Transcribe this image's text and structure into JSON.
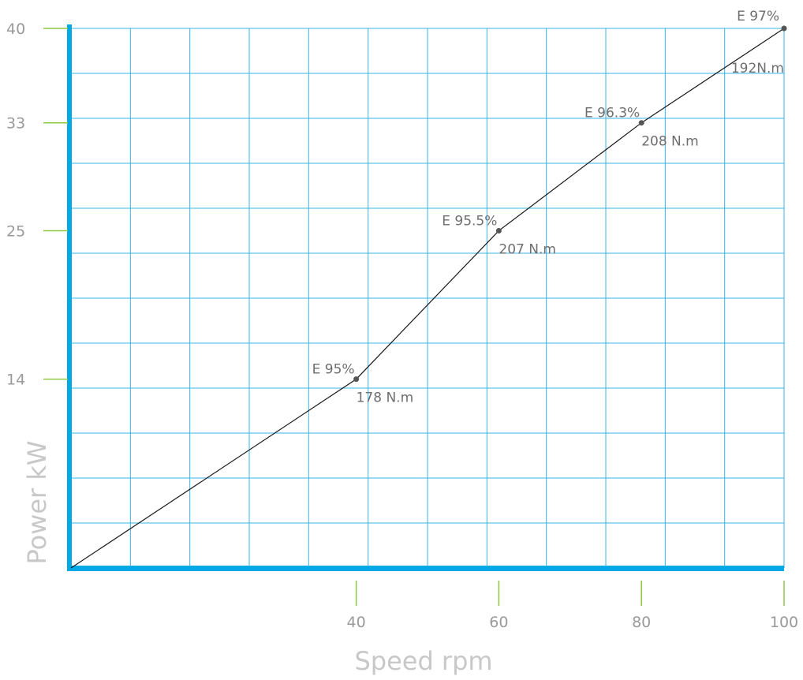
{
  "chart_data": {
    "type": "line",
    "xlabel": "Speed rpm",
    "ylabel": "Power kW",
    "xlim": [
      0,
      100
    ],
    "ylim": [
      0,
      40
    ],
    "x_ticks": [
      40,
      60,
      80,
      100
    ],
    "y_ticks": [
      14,
      25,
      33,
      40
    ],
    "grid": true,
    "series": [
      {
        "points": [
          {
            "x": 0,
            "y": 0
          },
          {
            "x": 40,
            "y": 14,
            "efficiency": "E 95%",
            "torque": "178 N.m"
          },
          {
            "x": 60,
            "y": 25,
            "efficiency": "E 95.5%",
            "torque": "207 N.m"
          },
          {
            "x": 80,
            "y": 33,
            "efficiency": "E 96.3%",
            "torque": "208 N.m"
          },
          {
            "x": 100,
            "y": 40,
            "efficiency": "E 97%",
            "torque": "192N.m"
          }
        ]
      }
    ],
    "colors": {
      "axis": "#00a9e6",
      "grid": "#3ab3e6",
      "tick_mark": "#8dc63f",
      "line": "#1a1a1a",
      "marker": "#555555"
    }
  }
}
